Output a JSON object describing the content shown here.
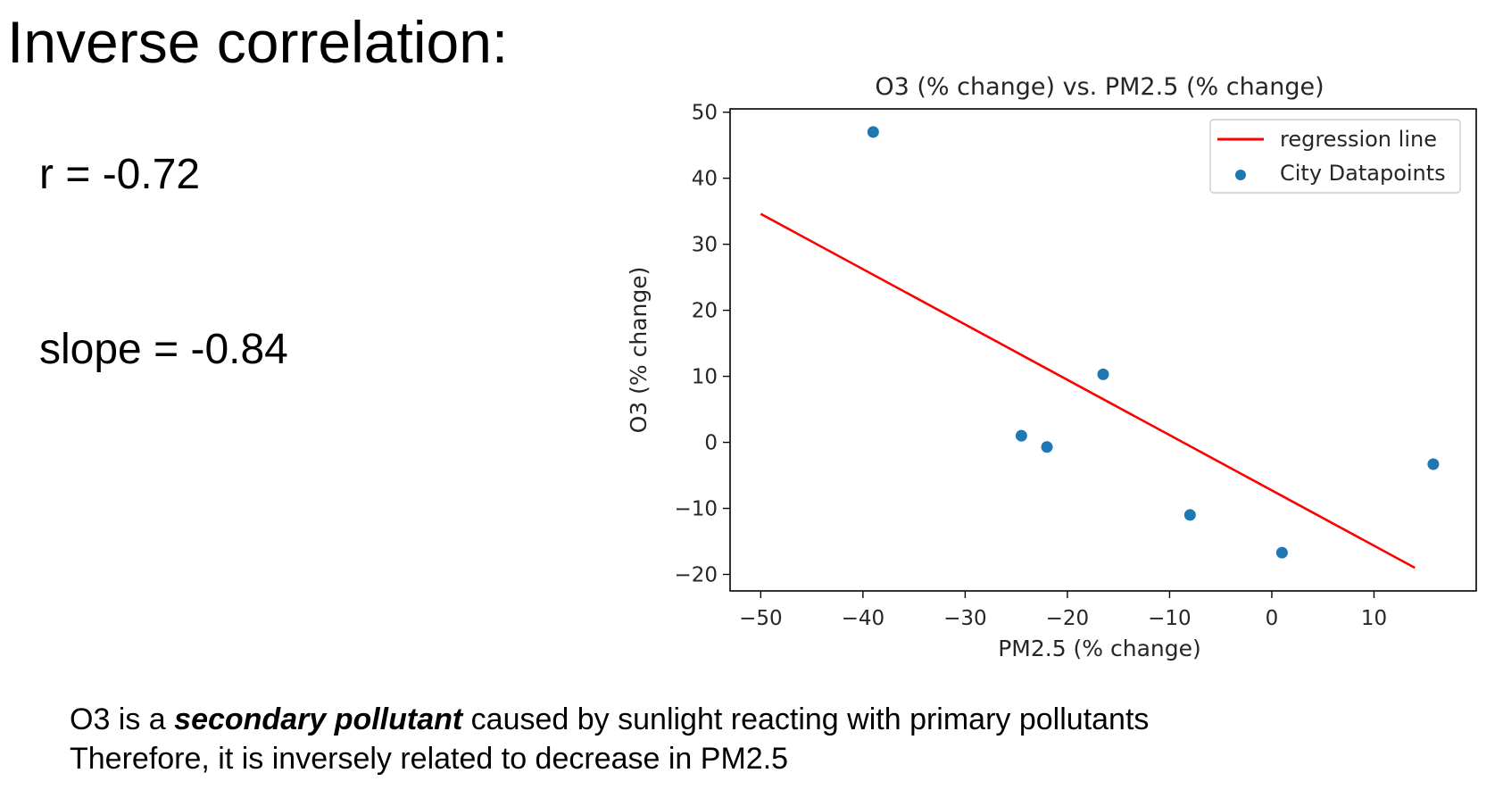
{
  "slide": {
    "title": "Inverse correlation:",
    "r_label": "r = -0.72",
    "slope_label": "slope = -0.84",
    "footer": {
      "line1_pre": "O3 is a ",
      "line1_emph": "secondary pollutant",
      "line1_post": " caused by sunlight reacting with primary pollutants",
      "line2": "Therefore, it is inversely related to decrease in PM2.5"
    }
  },
  "chart_data": {
    "type": "scatter",
    "title": "O3 (% change) vs. PM2.5 (% change)",
    "xlabel": "PM2.5 (% change)",
    "ylabel": "O3 (% change)",
    "xlim": [
      -53,
      20
    ],
    "ylim": [
      -22.5,
      50.5
    ],
    "xticks": [
      -50,
      -40,
      -30,
      -20,
      -10,
      0,
      10
    ],
    "yticks": [
      -20,
      -10,
      0,
      10,
      20,
      30,
      40,
      50
    ],
    "xtick_labels": [
      "−50",
      "−40",
      "−30",
      "−20",
      "−10",
      "0",
      "10"
    ],
    "ytick_labels": [
      "−20",
      "−10",
      "0",
      "10",
      "20",
      "30",
      "40",
      "50"
    ],
    "grid": false,
    "legend_position": "top-right",
    "series": [
      {
        "name": "City Datapoints",
        "kind": "scatter",
        "color": "#1f77b4",
        "points": [
          {
            "x": -39,
            "y": 47
          },
          {
            "x": -16.5,
            "y": 10.3
          },
          {
            "x": -24.5,
            "y": 1
          },
          {
            "x": -22,
            "y": -0.7
          },
          {
            "x": -8,
            "y": -11
          },
          {
            "x": 1,
            "y": -16.7
          },
          {
            "x": 15.8,
            "y": -3.3
          }
        ]
      },
      {
        "name": "regression line",
        "kind": "line",
        "color": "#ff0000",
        "points": [
          {
            "x": -50,
            "y": 34.6
          },
          {
            "x": 14,
            "y": -19
          }
        ]
      }
    ],
    "legend_order": [
      "regression line",
      "City Datapoints"
    ]
  }
}
